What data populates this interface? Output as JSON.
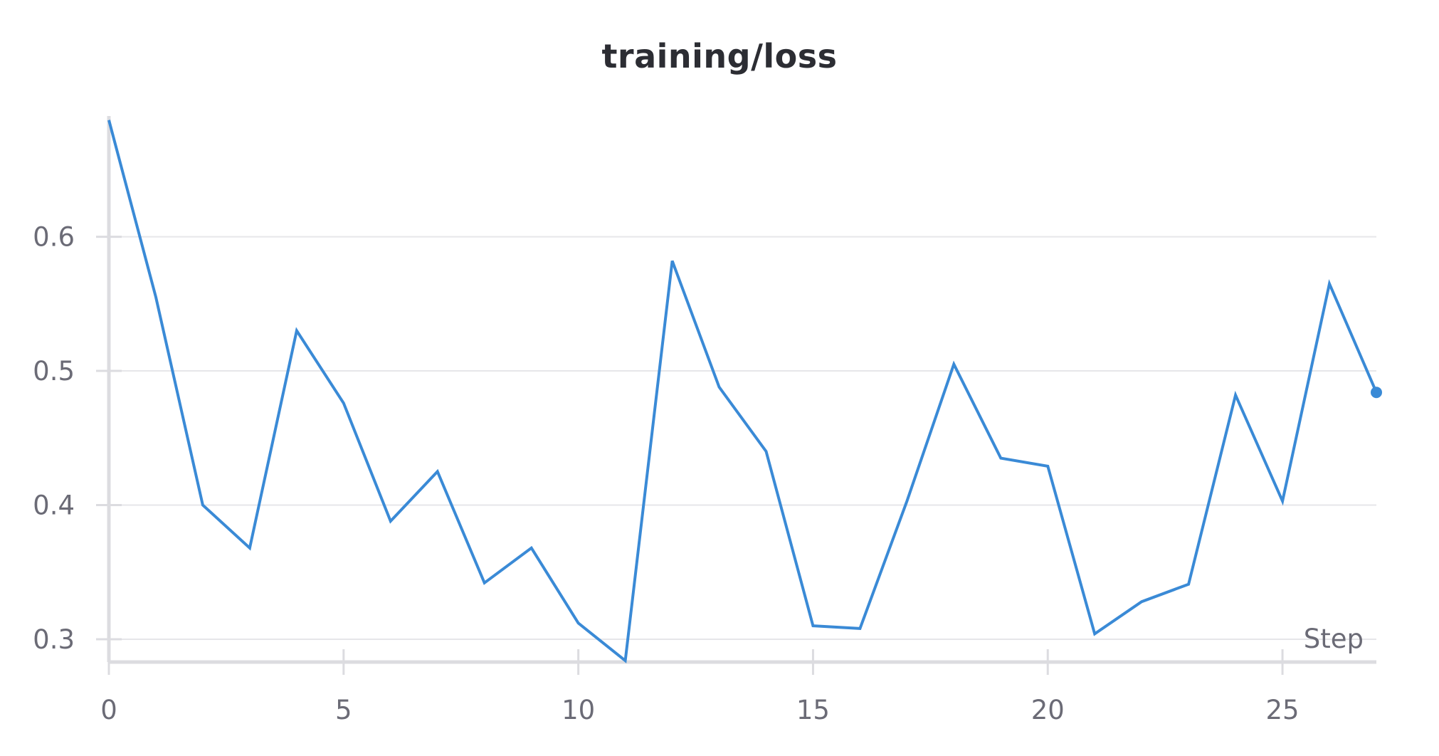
{
  "chart_data": {
    "type": "line",
    "title": "training/loss",
    "xlabel": "Step",
    "ylabel": "",
    "xlim": [
      0,
      27
    ],
    "ylim": [
      0.283,
      0.69
    ],
    "x_ticks": [
      "0",
      "5",
      "10",
      "15",
      "20",
      "25"
    ],
    "y_ticks": [
      "0.3",
      "0.4",
      "0.5",
      "0.6"
    ],
    "grid": "horizontal",
    "legend": "none",
    "series": [
      {
        "color": "#3a8ad6",
        "x": [
          0,
          1,
          2,
          3,
          4,
          5,
          6,
          7,
          8,
          9,
          10,
          11,
          12,
          13,
          14,
          15,
          16,
          17,
          18,
          19,
          20,
          21,
          22,
          23,
          24,
          25,
          26,
          27
        ],
        "values": [
          0.687,
          0.555,
          0.4,
          0.368,
          0.53,
          0.476,
          0.388,
          0.425,
          0.342,
          0.368,
          0.312,
          0.284,
          0.582,
          0.488,
          0.44,
          0.31,
          0.308,
          0.403,
          0.505,
          0.435,
          0.429,
          0.304,
          0.328,
          0.341,
          0.482,
          0.403,
          0.565,
          0.484
        ]
      }
    ]
  }
}
